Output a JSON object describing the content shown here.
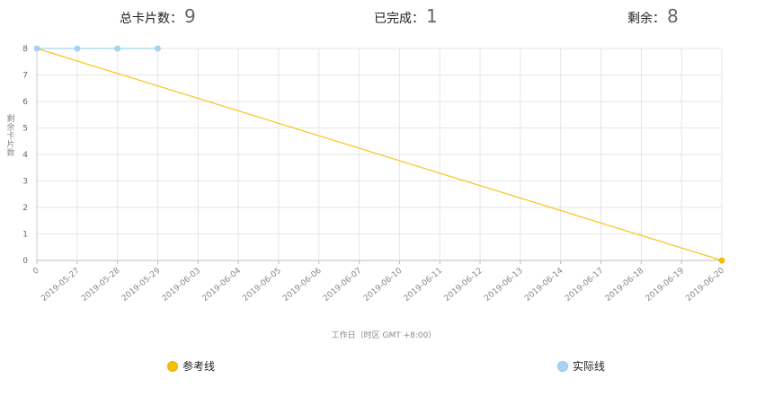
{
  "stats": {
    "total_label": "总卡片数：",
    "total_value": "9",
    "done_label": "已完成：",
    "done_value": "1",
    "remaining_label": "剩余：",
    "remaining_value": "8"
  },
  "chart_data": {
    "type": "line",
    "ylabel": "剩余卡片数",
    "xlabel": "工作日（时区 GMT +8:00）",
    "categories": [
      "0",
      "2019-05-27",
      "2019-05-28",
      "2019-05-29",
      "2019-06-03",
      "2019-06-04",
      "2019-06-05",
      "2019-06-06",
      "2019-06-07",
      "2019-06-10",
      "2019-06-11",
      "2019-06-12",
      "2019-06-13",
      "2019-06-14",
      "2019-06-17",
      "2019-06-18",
      "2019-06-19",
      "2019-06-20"
    ],
    "ylim": [
      0,
      8
    ],
    "yticks": [
      "0",
      "1",
      "2",
      "3",
      "4",
      "5",
      "6",
      "7",
      "8"
    ],
    "grid": true,
    "legend_position": "bottom",
    "series": [
      {
        "name": "参考线",
        "color": "#f5c518",
        "points": [
          {
            "x": "0",
            "y": 8
          },
          {
            "x": "2019-06-20",
            "y": 0
          }
        ]
      },
      {
        "name": "实际线",
        "color": "#a8d4f2",
        "points": [
          {
            "x": "0",
            "y": 8
          },
          {
            "x": "2019-05-27",
            "y": 8
          },
          {
            "x": "2019-05-28",
            "y": 8
          },
          {
            "x": "2019-05-29",
            "y": 8
          }
        ]
      }
    ]
  }
}
